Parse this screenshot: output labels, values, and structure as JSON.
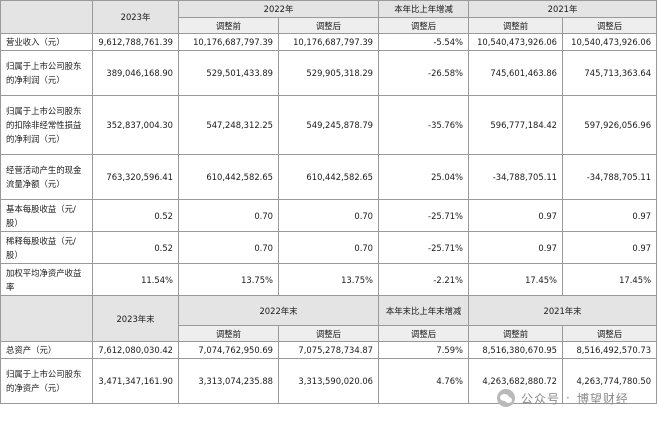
{
  "header": {
    "y2023": "2023年",
    "y2022": "2022年",
    "yoy": "本年比上年增减",
    "y2021": "2021年",
    "before": "调整前",
    "after": "调整后",
    "after2": "调整后"
  },
  "rows": [
    {
      "label": "营业收入（元）",
      "v2023": "9,612,788,761.39",
      "v2022_before": "10,176,687,797.39",
      "v2022_after": "10,176,687,797.39",
      "yoy": "-5.54%",
      "v2021_before": "10,540,473,926.06",
      "v2021_after": "10,540,473,926.06"
    },
    {
      "label": "归属于上市公司股东的净利润（元）",
      "v2023": "389,046,168.90",
      "v2022_before": "529,501,433.89",
      "v2022_after": "529,905,318.29",
      "yoy": "-26.58%",
      "v2021_before": "745,601,463.86",
      "v2021_after": "745,713,363.64"
    },
    {
      "label": "归属于上市公司股东的扣除非经常性损益的净利润（元）",
      "v2023": "352,837,004.30",
      "v2022_before": "547,248,312.25",
      "v2022_after": "549,245,878.79",
      "yoy": "-35.76%",
      "v2021_before": "596,777,184.42",
      "v2021_after": "597,926,056.96"
    },
    {
      "label": "经营活动产生的现金流量净额（元）",
      "v2023": "763,320,596.41",
      "v2022_before": "610,442,582.65",
      "v2022_after": "610,442,582.65",
      "yoy": "25.04%",
      "v2021_before": "-34,788,705.11",
      "v2021_after": "-34,788,705.11"
    },
    {
      "label": "基本每股收益（元/股）",
      "v2023": "0.52",
      "v2022_before": "0.70",
      "v2022_after": "0.70",
      "yoy": "-25.71%",
      "v2021_before": "0.97",
      "v2021_after": "0.97"
    },
    {
      "label": "稀释每股收益（元/股）",
      "v2023": "0.52",
      "v2022_before": "0.70",
      "v2022_after": "0.70",
      "yoy": "-25.71%",
      "v2021_before": "0.97",
      "v2021_after": "0.97"
    },
    {
      "label": "加权平均净资产收益率",
      "v2023": "11.54%",
      "v2022_before": "13.75%",
      "v2022_after": "13.75%",
      "yoy": "-2.21%",
      "v2021_before": "17.45%",
      "v2021_after": "17.45%"
    }
  ],
  "header2": {
    "y2023": "2023年末",
    "y2022": "2022年末",
    "yoy": "本年末比上年末增减",
    "y2021": "2021年末",
    "before": "调整前",
    "after": "调整后",
    "before2": "调整前",
    "after2": "调整后"
  },
  "rows2": [
    {
      "label": "总资产（元）",
      "v2023": "7,612,080,030.42",
      "v2022_before": "7,074,762,950.69",
      "v2022_after": "7,075,278,734.87",
      "yoy": "7.59%",
      "v2021_before": "8,516,380,670.95",
      "v2021_after": "8,516,492,570.73"
    },
    {
      "label": "归属于上市公司股东的净资产（元）",
      "v2023": "3,471,347,161.90",
      "v2022_before": "3,313,074,235.88",
      "v2022_after": "3,313,590,020.06",
      "yoy": "4.76%",
      "v2021_before": "4,263,682,880.72",
      "v2021_after": "4,263,774,780.50"
    }
  ],
  "watermark": {
    "left": "公众号",
    "right": "博望财经"
  }
}
